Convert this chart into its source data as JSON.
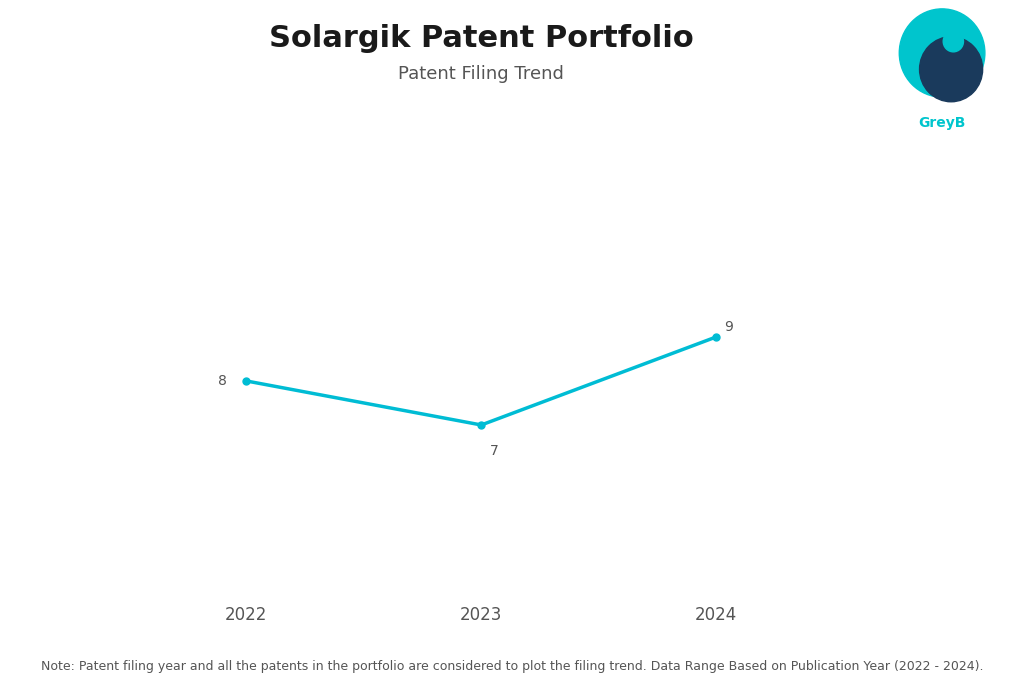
{
  "title": "Solargik Patent Portfolio",
  "subtitle": "Patent Filing Trend",
  "x_values": [
    2022,
    2023,
    2024
  ],
  "y_values": [
    8,
    7,
    9
  ],
  "line_color": "#00BCD4",
  "marker_color": "#00BCD4",
  "background_color": "#ffffff",
  "note": "Note: Patent filing year and all the patents in the portfolio are considered to plot the filing trend. Data Range Based on Publication Year (2022 - 2024).",
  "title_fontsize": 22,
  "subtitle_fontsize": 13,
  "note_fontsize": 9,
  "label_fontsize": 10,
  "tick_fontsize": 12,
  "xlim": [
    2021.3,
    2024.7
  ],
  "ylim": [
    3,
    12
  ],
  "yticks": [],
  "xticks": [
    2022,
    2023,
    2024
  ],
  "label_color": "#555555",
  "tick_color": "#555555"
}
